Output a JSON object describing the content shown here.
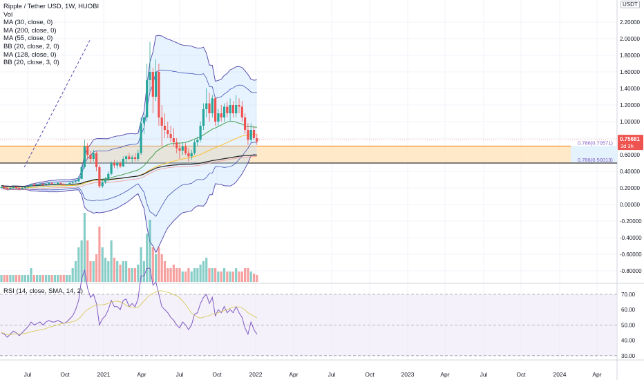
{
  "header": {
    "title": "Ripple / Tether USD, 1W, HUOBI",
    "indicators": [
      "Vol",
      "MA (30, close, 0)",
      "MA (200, close, 0)",
      "MA (55, close, 0)",
      "BB (20, close, 2, 0)",
      "MA (128, close, 0)",
      "BB (20, close, 3, 0)"
    ],
    "currency": "USDT"
  },
  "price_tag": {
    "value": "0.75681",
    "countdown": "3d 3h",
    "color": "#ef5350"
  },
  "fib_labels": {
    "upper": "0.786(0.70571)",
    "lower": "0.786(0.50013)"
  },
  "rsi_label": "RSI (14, close, SMA, 14, 2)",
  "colors": {
    "up": "#26a69a",
    "down": "#ef5350",
    "bb": "#5b4fb0",
    "rsi": "#7e57c2",
    "fib_zone": "#ffe0b2"
  },
  "chart_data": {
    "type": "candlestick",
    "x_tick_labels": [
      "Jul",
      "Oct",
      "2021",
      "Apr",
      "Jul",
      "Oct",
      "2022",
      "Apr",
      "Jul",
      "Oct",
      "2023",
      "Apr",
      "Jul",
      "Oct",
      "2024",
      "Apr"
    ],
    "price_axis": {
      "ticks": [
        2.2,
        2.0,
        1.8,
        1.6,
        1.4,
        1.2,
        1.0,
        0.8,
        0.6,
        0.4,
        0.2,
        0.0,
        -0.2,
        -0.4,
        -0.6,
        -0.8
      ],
      "labels": [
        "2.20000",
        "2.00000",
        "1.80000",
        "1.60000",
        "1.40000",
        "1.20000",
        "1.00000",
        "0.80000",
        "0.60000",
        "0.40000",
        "0.20000",
        "0.00000",
        "-0.20000",
        "-0.40000",
        "-0.60000",
        "-0.80000"
      ]
    },
    "rsi_axis": {
      "ticks": [
        70,
        60,
        50,
        40,
        30
      ],
      "labels": [
        "70.00",
        "60.00",
        "50.00",
        "40.00",
        "30.00"
      ],
      "upper_band": 70,
      "lower_band": 30
    },
    "fib_levels": [
      0.70571,
      0.50013
    ],
    "candles_ohlc": [
      [
        0.2,
        0.22,
        0.19,
        0.21
      ],
      [
        0.21,
        0.23,
        0.19,
        0.2
      ],
      [
        0.2,
        0.21,
        0.18,
        0.19
      ],
      [
        0.19,
        0.21,
        0.18,
        0.2
      ],
      [
        0.2,
        0.22,
        0.19,
        0.21
      ],
      [
        0.21,
        0.22,
        0.19,
        0.2
      ],
      [
        0.2,
        0.21,
        0.18,
        0.19
      ],
      [
        0.19,
        0.21,
        0.18,
        0.2
      ],
      [
        0.2,
        0.22,
        0.19,
        0.21
      ],
      [
        0.21,
        0.23,
        0.2,
        0.22
      ],
      [
        0.22,
        0.25,
        0.21,
        0.24
      ],
      [
        0.24,
        0.26,
        0.22,
        0.23
      ],
      [
        0.23,
        0.25,
        0.22,
        0.24
      ],
      [
        0.24,
        0.26,
        0.23,
        0.25
      ],
      [
        0.25,
        0.27,
        0.23,
        0.24
      ],
      [
        0.24,
        0.26,
        0.23,
        0.25
      ],
      [
        0.25,
        0.27,
        0.24,
        0.26
      ],
      [
        0.26,
        0.27,
        0.24,
        0.25
      ],
      [
        0.25,
        0.26,
        0.24,
        0.25
      ],
      [
        0.25,
        0.27,
        0.24,
        0.26
      ],
      [
        0.26,
        0.27,
        0.24,
        0.25
      ],
      [
        0.25,
        0.26,
        0.23,
        0.24
      ],
      [
        0.24,
        0.25,
        0.23,
        0.25
      ],
      [
        0.25,
        0.27,
        0.24,
        0.26
      ],
      [
        0.26,
        0.28,
        0.25,
        0.27
      ],
      [
        0.27,
        0.3,
        0.26,
        0.28
      ],
      [
        0.28,
        0.34,
        0.27,
        0.31
      ],
      [
        0.31,
        0.48,
        0.3,
        0.45
      ],
      [
        0.45,
        0.78,
        0.43,
        0.7
      ],
      [
        0.7,
        0.74,
        0.55,
        0.6
      ],
      [
        0.6,
        0.65,
        0.5,
        0.55
      ],
      [
        0.55,
        0.66,
        0.52,
        0.62
      ],
      [
        0.62,
        0.64,
        0.4,
        0.45
      ],
      [
        0.45,
        0.48,
        0.2,
        0.22
      ],
      [
        0.22,
        0.3,
        0.2,
        0.27
      ],
      [
        0.27,
        0.33,
        0.25,
        0.3
      ],
      [
        0.3,
        0.4,
        0.28,
        0.37
      ],
      [
        0.37,
        0.52,
        0.35,
        0.5
      ],
      [
        0.5,
        0.54,
        0.44,
        0.47
      ],
      [
        0.47,
        0.53,
        0.43,
        0.5
      ],
      [
        0.5,
        0.52,
        0.44,
        0.46
      ],
      [
        0.46,
        0.58,
        0.45,
        0.55
      ],
      [
        0.55,
        0.6,
        0.5,
        0.58
      ],
      [
        0.58,
        0.62,
        0.54,
        0.55
      ],
      [
        0.55,
        0.6,
        0.5,
        0.57
      ],
      [
        0.57,
        0.62,
        0.52,
        0.55
      ],
      [
        0.55,
        0.66,
        0.52,
        0.62
      ],
      [
        0.62,
        1.05,
        0.6,
        0.98
      ],
      [
        0.98,
        1.1,
        0.85,
        1.05
      ],
      [
        1.05,
        1.7,
        1.0,
        1.5
      ],
      [
        1.5,
        1.96,
        1.35,
        1.6
      ],
      [
        1.6,
        1.65,
        1.1,
        1.3
      ],
      [
        1.3,
        1.75,
        1.25,
        1.6
      ],
      [
        1.6,
        1.7,
        0.95,
        1.05
      ],
      [
        1.05,
        1.2,
        0.7,
        0.95
      ],
      [
        0.95,
        1.1,
        0.8,
        0.9
      ],
      [
        0.9,
        1.0,
        0.8,
        0.85
      ],
      [
        0.85,
        0.95,
        0.75,
        0.8
      ],
      [
        0.8,
        0.92,
        0.7,
        0.75
      ],
      [
        0.75,
        0.8,
        0.62,
        0.68
      ],
      [
        0.68,
        0.74,
        0.55,
        0.65
      ],
      [
        0.65,
        0.75,
        0.6,
        0.7
      ],
      [
        0.7,
        0.74,
        0.6,
        0.62
      ],
      [
        0.62,
        0.68,
        0.52,
        0.58
      ],
      [
        0.58,
        0.66,
        0.54,
        0.62
      ],
      [
        0.62,
        0.78,
        0.6,
        0.75
      ],
      [
        0.75,
        0.82,
        0.7,
        0.78
      ],
      [
        0.78,
        1.0,
        0.75,
        0.95
      ],
      [
        0.95,
        1.22,
        0.9,
        1.15
      ],
      [
        1.15,
        1.4,
        1.05,
        1.22
      ],
      [
        1.22,
        1.35,
        1.0,
        1.1
      ],
      [
        1.1,
        1.32,
        1.05,
        1.28
      ],
      [
        1.28,
        1.3,
        0.95,
        1.0
      ],
      [
        1.0,
        1.15,
        0.95,
        1.1
      ],
      [
        1.1,
        1.2,
        1.0,
        1.05
      ],
      [
        1.05,
        1.22,
        1.0,
        1.18
      ],
      [
        1.18,
        1.24,
        1.05,
        1.1
      ],
      [
        1.1,
        1.28,
        1.0,
        1.2
      ],
      [
        1.2,
        1.25,
        1.05,
        1.1
      ],
      [
        1.1,
        1.32,
        1.05,
        1.2
      ],
      [
        1.2,
        1.28,
        1.1,
        1.18
      ],
      [
        1.18,
        1.25,
        1.0,
        1.05
      ],
      [
        1.05,
        1.1,
        0.85,
        0.9
      ],
      [
        0.9,
        0.98,
        0.72,
        0.78
      ],
      [
        0.78,
        0.98,
        0.75,
        0.9
      ],
      [
        0.9,
        0.95,
        0.78,
        0.8
      ],
      [
        0.8,
        0.85,
        0.72,
        0.76
      ]
    ],
    "volume_relative": [
      0.1,
      0.1,
      0.1,
      0.1,
      0.1,
      0.1,
      0.1,
      0.1,
      0.1,
      0.1,
      0.2,
      0.1,
      0.1,
      0.1,
      0.1,
      0.1,
      0.1,
      0.1,
      0.1,
      0.1,
      0.1,
      0.1,
      0.1,
      0.1,
      0.2,
      0.3,
      0.5,
      0.6,
      1.0,
      0.6,
      0.3,
      0.3,
      0.4,
      0.8,
      0.5,
      0.35,
      0.3,
      0.6,
      0.35,
      0.3,
      0.25,
      0.3,
      0.3,
      0.2,
      0.2,
      0.2,
      0.25,
      0.5,
      0.3,
      0.7,
      0.9,
      0.5,
      0.4,
      0.5,
      0.4,
      0.3,
      0.2,
      0.2,
      0.25,
      0.2,
      0.2,
      0.15,
      0.15,
      0.2,
      0.15,
      0.2,
      0.2,
      0.25,
      0.3,
      0.35,
      0.2,
      0.2,
      0.2,
      0.15,
      0.15,
      0.2,
      0.15,
      0.15,
      0.15,
      0.2,
      0.15,
      0.15,
      0.2,
      0.2,
      0.15,
      0.12,
      0.1
    ],
    "rsi": [
      45,
      44,
      42,
      44,
      46,
      45,
      43,
      45,
      47,
      49,
      52,
      50,
      51,
      52,
      50,
      52,
      53,
      52,
      52,
      53,
      52,
      51,
      52,
      54,
      56,
      60,
      66,
      80,
      86,
      74,
      68,
      70,
      64,
      50,
      54,
      56,
      60,
      66,
      62,
      62,
      60,
      66,
      67,
      62,
      64,
      62,
      67,
      82,
      82,
      87,
      87,
      76,
      78,
      70,
      62,
      60,
      58,
      55,
      53,
      50,
      48,
      52,
      50,
      47,
      50,
      57,
      58,
      64,
      68,
      70,
      64,
      68,
      56,
      60,
      58,
      62,
      58,
      60,
      58,
      62,
      58,
      55,
      48,
      44,
      52,
      47,
      44
    ]
  }
}
